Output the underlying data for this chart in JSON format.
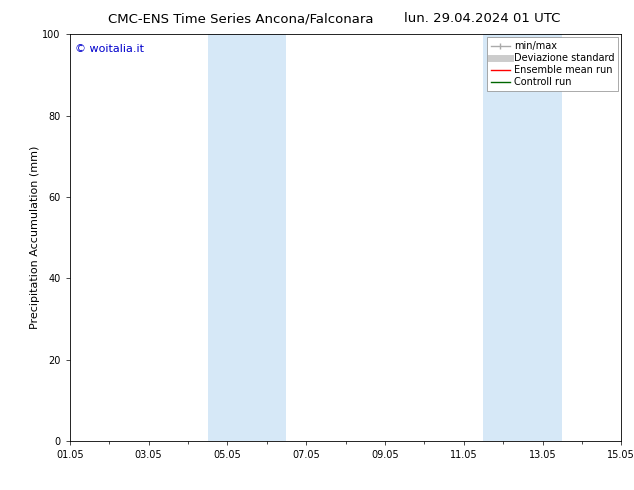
{
  "title_left": "CMC-ENS Time Series Ancona/Falconara",
  "title_right": "lun. 29.04.2024 01 UTC",
  "ylabel": "Precipitation Accumulation (mm)",
  "ylim": [
    0,
    100
  ],
  "yticks": [
    0,
    20,
    40,
    60,
    80,
    100
  ],
  "x_start_day": 0,
  "x_end_day": 14,
  "xtick_labels": [
    "01.05",
    "03.05",
    "05.05",
    "07.05",
    "09.05",
    "11.05",
    "13.05",
    "15.05"
  ],
  "xtick_positions_days": [
    0,
    2,
    4,
    6,
    8,
    10,
    12,
    14
  ],
  "shaded_regions": [
    {
      "x_start_day": 3.5,
      "x_end_day": 5.5
    },
    {
      "x_start_day": 10.5,
      "x_end_day": 12.5
    }
  ],
  "shaded_color": "#d6e8f7",
  "copyright_text": "© woitalia.it",
  "copyright_color": "#0000cc",
  "legend_entries": [
    {
      "label": "min/max",
      "color": "#aaaaaa",
      "linestyle": "-",
      "linewidth": 1.0
    },
    {
      "label": "Deviazione standard",
      "color": "#cccccc",
      "linestyle": "-",
      "linewidth": 5
    },
    {
      "label": "Ensemble mean run",
      "color": "#ff0000",
      "linestyle": "-",
      "linewidth": 1.0
    },
    {
      "label": "Controll run",
      "color": "#006600",
      "linestyle": "-",
      "linewidth": 1.0
    }
  ],
  "bg_color": "#ffffff",
  "grid_color": "#cccccc",
  "title_fontsize": 9.5,
  "tick_fontsize": 7,
  "ylabel_fontsize": 8,
  "copyright_fontsize": 8,
  "legend_fontsize": 7
}
